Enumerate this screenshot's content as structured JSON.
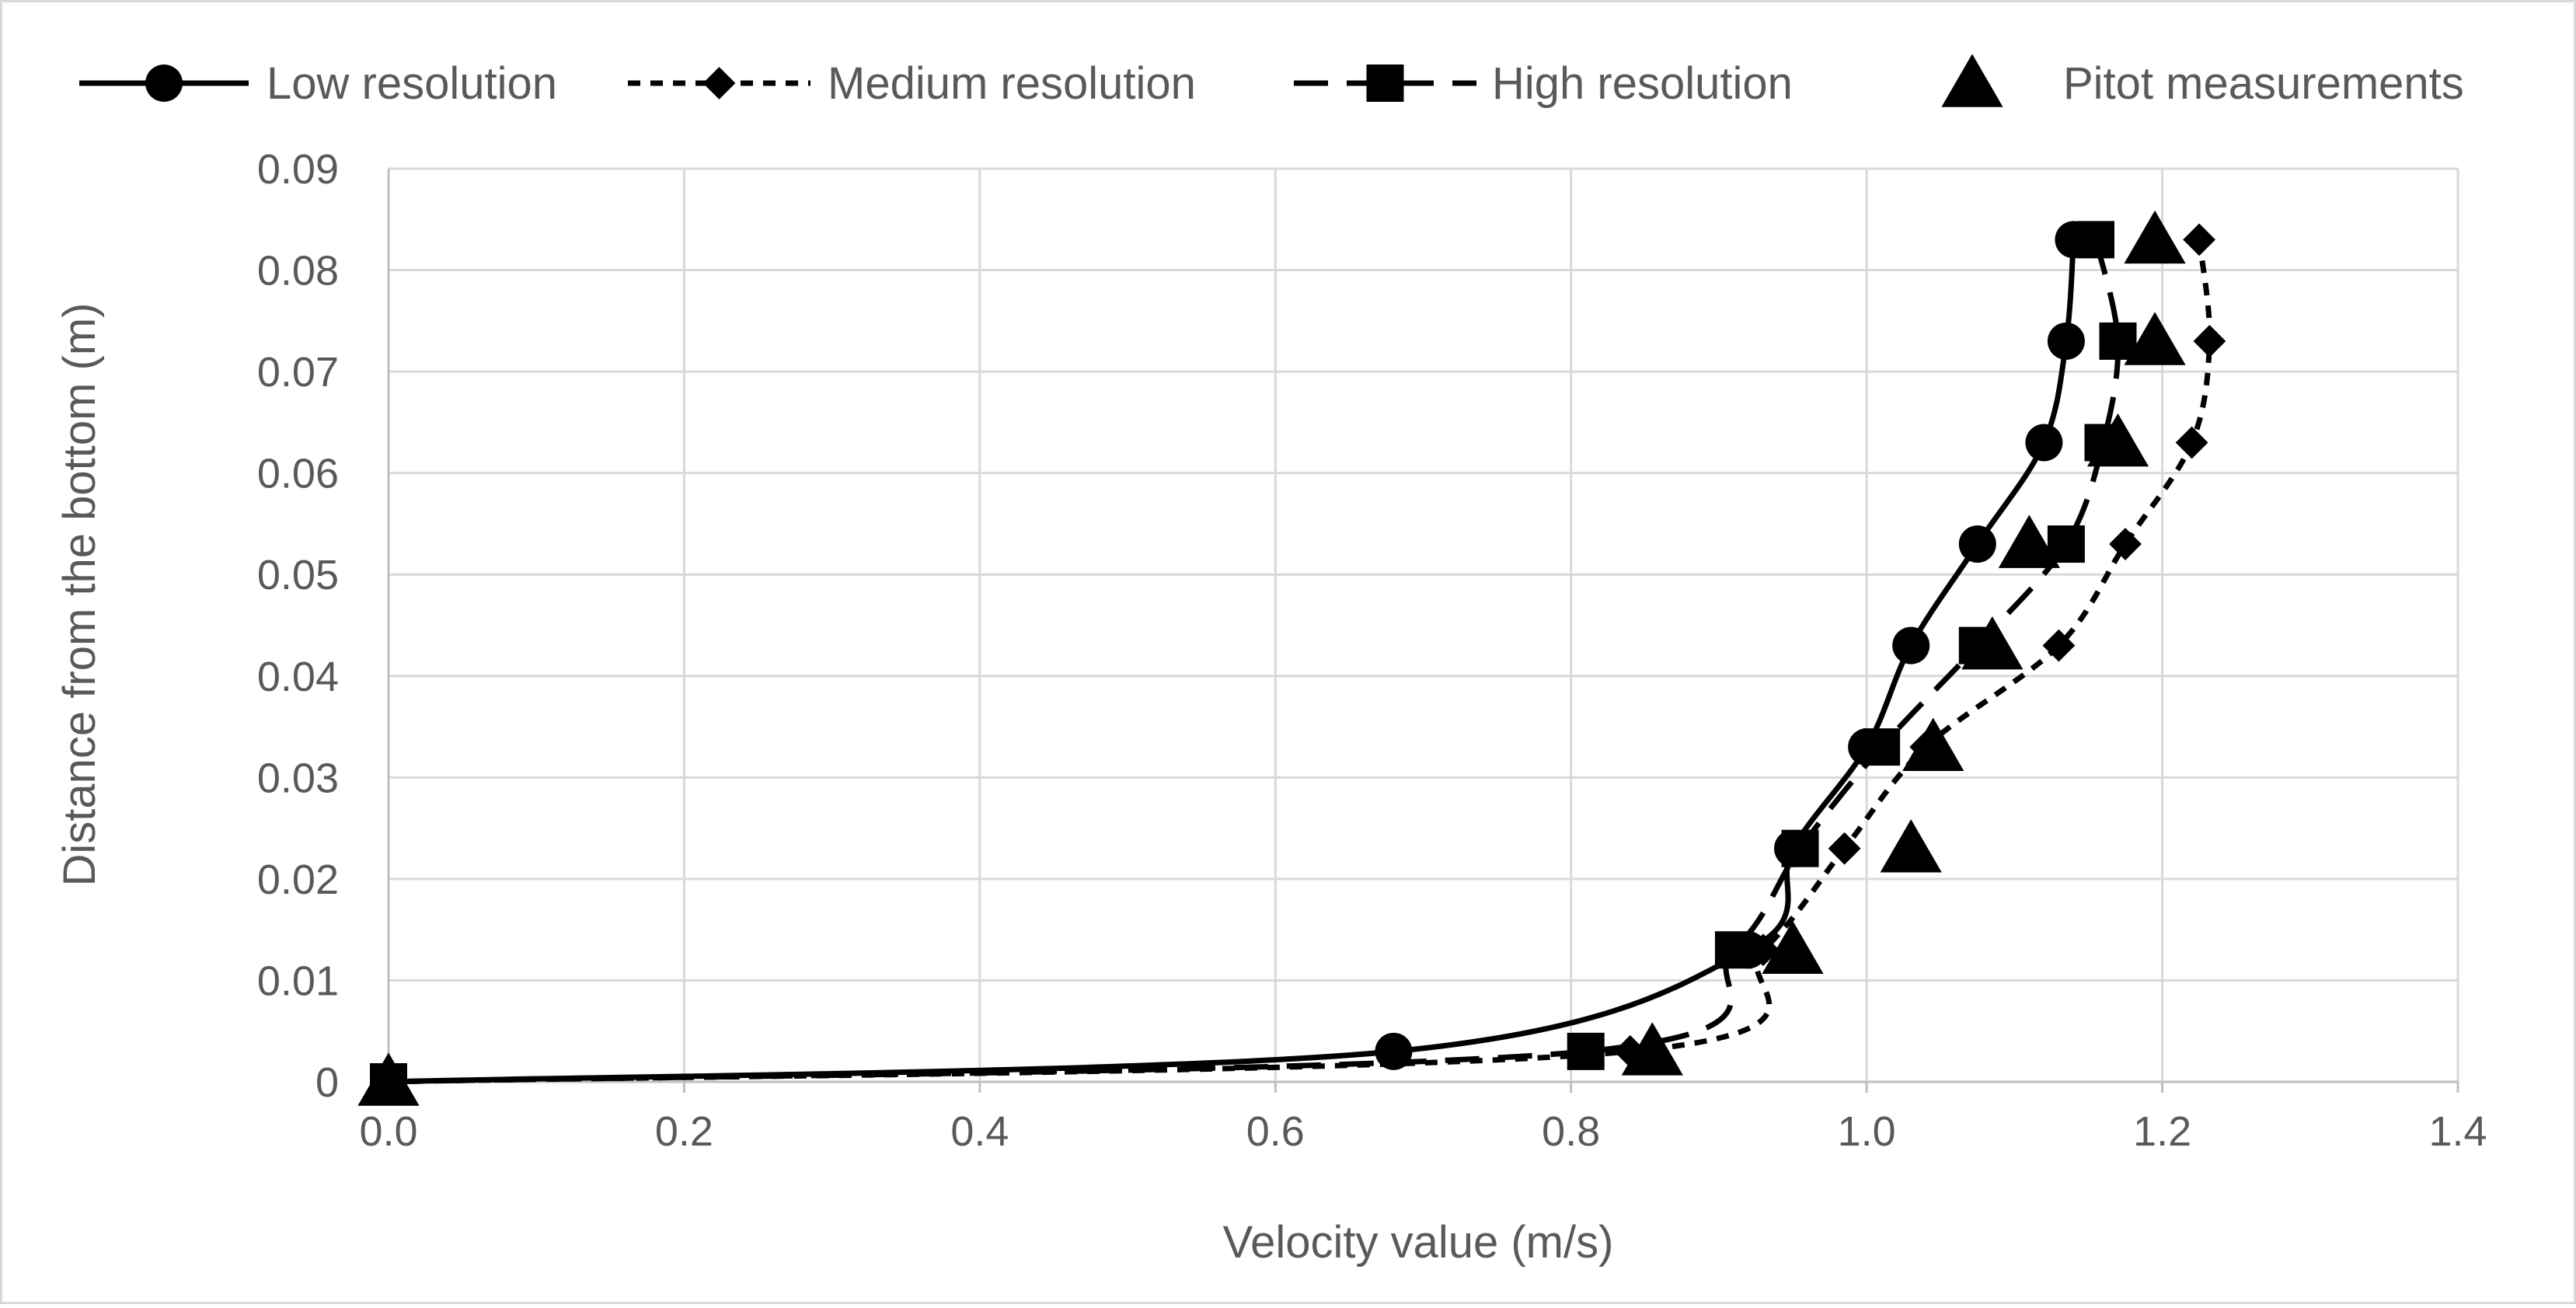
{
  "chart_data": {
    "type": "line",
    "title": "",
    "xlabel": "Velocity value (m/s)",
    "ylabel": "Distance from the bottom (m)",
    "xlim": [
      0,
      1.4
    ],
    "ylim": [
      0,
      0.09
    ],
    "xticks": [
      0,
      0.2,
      0.4,
      0.6,
      0.8,
      1.0,
      1.2,
      1.4
    ],
    "xtick_labels": [
      "0.0",
      "0.2",
      "0.4",
      "0.6",
      "0.8",
      "1.0",
      "1.2",
      "1.4"
    ],
    "yticks": [
      0,
      0.01,
      0.02,
      0.03,
      0.04,
      0.05,
      0.06,
      0.07,
      0.08,
      0.09
    ],
    "ytick_labels": [
      "0",
      "0.01",
      "0.02",
      "0.03",
      "0.04",
      "0.05",
      "0.06",
      "0.07",
      "0.08",
      "0.09"
    ],
    "grid": true,
    "legend_position": "top",
    "series": [
      {
        "name": "Low resolution",
        "marker": "circle",
        "line_style": "solid",
        "smooth": true,
        "x": [
          0.0,
          0.68,
          0.92,
          0.95,
          1.0,
          1.03,
          1.075,
          1.12,
          1.135,
          1.14
        ],
        "y": [
          0,
          0.003,
          0.013,
          0.023,
          0.033,
          0.043,
          0.053,
          0.063,
          0.073,
          0.083
        ]
      },
      {
        "name": "Medium resolution",
        "marker": "diamond",
        "line_style": "dashed",
        "smooth": true,
        "x": [
          0.0,
          0.84,
          0.93,
          0.985,
          1.04,
          1.13,
          1.175,
          1.22,
          1.232,
          1.225
        ],
        "y": [
          0,
          0.003,
          0.013,
          0.023,
          0.033,
          0.043,
          0.053,
          0.063,
          0.073,
          0.083
        ]
      },
      {
        "name": "High resolution",
        "marker": "square",
        "line_style": "long-dashed",
        "smooth": true,
        "x": [
          0.0,
          0.81,
          0.91,
          0.955,
          1.01,
          1.075,
          1.135,
          1.16,
          1.17,
          1.155
        ],
        "y": [
          0,
          0.003,
          0.013,
          0.023,
          0.033,
          0.043,
          0.053,
          0.063,
          0.073,
          0.083
        ]
      },
      {
        "name": "Pitot measurements",
        "marker": "triangle",
        "line_style": "none",
        "smooth": false,
        "x": [
          0.0,
          0.855,
          0.95,
          1.03,
          1.045,
          1.085,
          1.11,
          1.17,
          1.195,
          1.195
        ],
        "y": [
          0,
          0.003,
          0.013,
          0.023,
          0.033,
          0.043,
          0.053,
          0.063,
          0.073,
          0.083
        ]
      }
    ]
  },
  "colors": {
    "series": "#000000",
    "grid": "#d9d9d9",
    "axis": "#bfbfbf",
    "text": "#595959",
    "frame": "#d9d9d9"
  }
}
